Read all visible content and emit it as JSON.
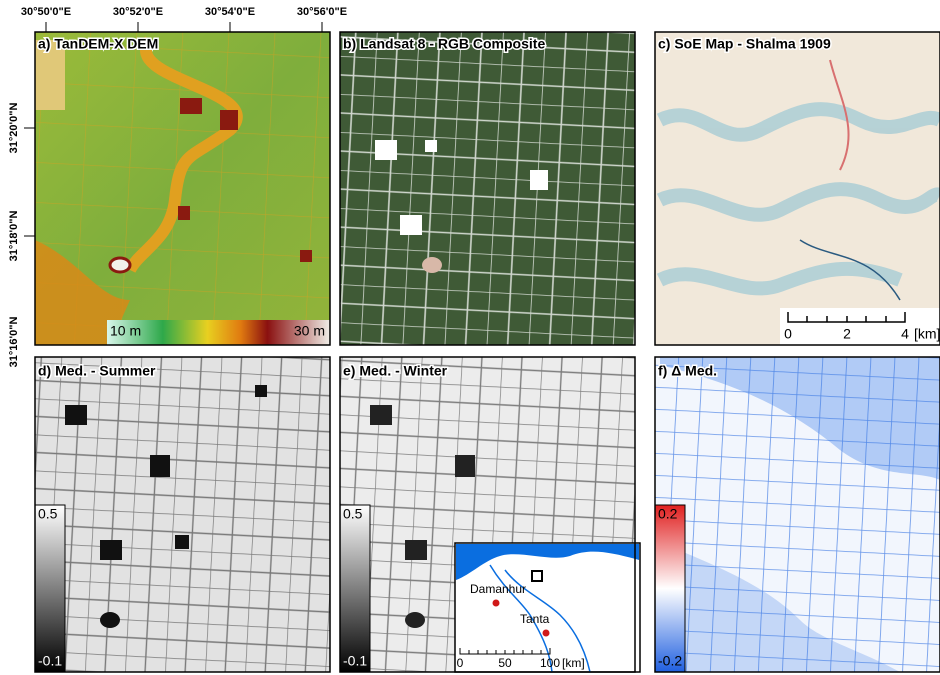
{
  "axes": {
    "x_labels": [
      "30°50'0\"E",
      "30°52'0\"E",
      "30°54'0\"E",
      "30°56'0\"E"
    ],
    "y_labels": [
      "31°20'0\"N",
      "31°18'0\"N",
      "31°16'0\"N"
    ]
  },
  "panels": [
    {
      "title": "a) TanDEM-X DEM",
      "colorbar": {
        "min_label": "10 m",
        "max_label": "30 m"
      }
    },
    {
      "title": "b) Landsat 8 - RGB Composite"
    },
    {
      "title": "c) SoE Map - Shalma 1909",
      "scalebar": {
        "ticks": [
          "0",
          "2",
          "4"
        ],
        "unit": "[km]"
      }
    },
    {
      "title": "d) Med. - Summer",
      "colorbar": {
        "max_label": "0.5",
        "min_label": "-0.1"
      }
    },
    {
      "title": "e) Med. - Winter",
      "colorbar": {
        "max_label": "0.5",
        "min_label": "-0.1"
      },
      "inset": {
        "places": [
          "Damanhur",
          "Tanta"
        ],
        "scalebar": {
          "ticks": [
            "0",
            "50",
            "100"
          ],
          "unit": "[km]"
        }
      }
    },
    {
      "title": "f) Δ Med.",
      "colorbar": {
        "max_label": "0.2",
        "min_label": "-0.2"
      }
    }
  ]
}
